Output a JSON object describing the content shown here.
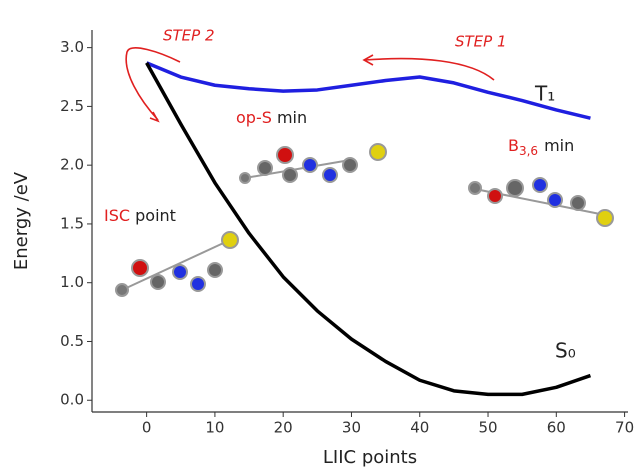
{
  "chart_data": {
    "type": "line",
    "x_label": "LIIC points",
    "y_label": "Energy /eV",
    "x": [
      0,
      5,
      10,
      15,
      20,
      25,
      30,
      35,
      40,
      45,
      50,
      55,
      60,
      65
    ],
    "series": [
      {
        "name": "T₁",
        "color": "#1f1fe0",
        "values": [
          2.87,
          2.75,
          2.68,
          2.65,
          2.63,
          2.64,
          2.68,
          2.72,
          2.75,
          2.7,
          2.62,
          2.55,
          2.47,
          2.4
        ]
      },
      {
        "name": "S₀",
        "color": "#000000",
        "values": [
          2.87,
          2.35,
          1.85,
          1.42,
          1.05,
          0.76,
          0.52,
          0.33,
          0.17,
          0.08,
          0.05,
          0.05,
          0.11,
          0.21
        ]
      }
    ],
    "xlim": [
      -8,
      70.5
    ],
    "ylim": [
      -0.1,
      3.15
    ],
    "xticks": [
      0,
      10,
      20,
      30,
      40,
      50,
      60,
      70
    ],
    "yticks": [
      {
        "value": 0,
        "label": "0.0"
      },
      0.5,
      {
        "value": 1,
        "label": "1.0"
      },
      1.5,
      {
        "value": 2,
        "label": "2.0"
      },
      2.5,
      {
        "value": 3,
        "label": "3.0"
      }
    ],
    "annotations": {
      "step2": "STEP 2",
      "step1": "STEP 1",
      "ops": [
        "op-S",
        "min"
      ],
      "b36": [
        "B",
        "3,6",
        "min"
      ],
      "isc": [
        "ISC",
        "point"
      ]
    }
  }
}
